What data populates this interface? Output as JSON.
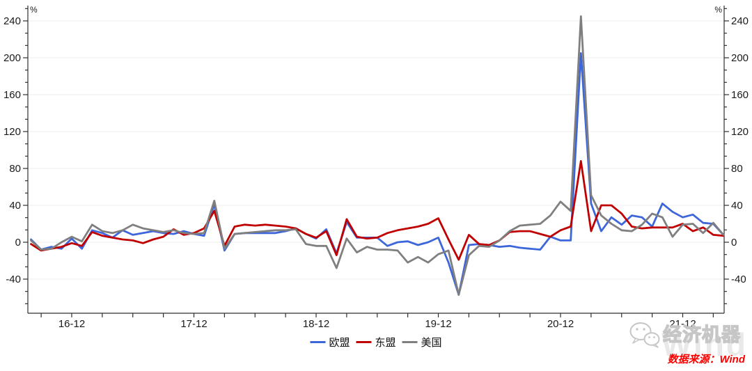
{
  "chart_data": {
    "type": "line",
    "title": "",
    "grid": "horizontal-faint",
    "legend_position": "bottom-center",
    "y_axis": {
      "unit_left": "%",
      "unit_right": "%",
      "ticks": [
        -40,
        0,
        40,
        80,
        120,
        160,
        200,
        240
      ],
      "ylim": [
        -77,
        257
      ]
    },
    "x": [
      "16-08",
      "16-09",
      "16-10",
      "16-11",
      "16-12",
      "17-01",
      "17-02",
      "17-03",
      "17-04",
      "17-05",
      "17-06",
      "17-07",
      "17-08",
      "17-09",
      "17-10",
      "17-11",
      "17-12",
      "18-01",
      "18-02",
      "18-03",
      "18-04",
      "18-05",
      "18-06",
      "18-07",
      "18-08",
      "18-09",
      "18-10",
      "18-11",
      "18-12",
      "19-01",
      "19-02",
      "19-03",
      "19-04",
      "19-05",
      "19-06",
      "19-07",
      "19-08",
      "19-09",
      "19-10",
      "19-11",
      "19-12",
      "20-01",
      "20-02",
      "20-03",
      "20-04",
      "20-05",
      "20-06",
      "20-07",
      "20-08",
      "20-09",
      "20-10",
      "20-11",
      "20-12",
      "21-01",
      "21-02",
      "21-03",
      "21-04",
      "21-05",
      "21-06",
      "21-07",
      "21-08",
      "21-09",
      "21-10",
      "21-11",
      "21-12",
      "22-01",
      "22-02",
      "22-03",
      "22-04"
    ],
    "x_labels": [
      "16-12",
      "17-12",
      "18-12",
      "19-12",
      "20-12",
      "21-12"
    ],
    "x_label_indices": [
      4,
      16,
      28,
      40,
      52,
      64
    ],
    "x_tick_every_months": 3,
    "series": [
      {
        "name": "欧盟",
        "color": "#3E66DB",
        "values": [
          3,
          -8,
          -5,
          -7,
          4,
          -7,
          13,
          10,
          5,
          13,
          8,
          10,
          12,
          10,
          9,
          12,
          9,
          7,
          41,
          -9,
          9,
          10,
          10,
          10,
          10,
          12,
          15,
          9,
          4,
          14,
          -12,
          22,
          5,
          5,
          5,
          -4,
          0,
          1,
          -3,
          0,
          5,
          -22,
          -57,
          -3,
          -2,
          -3,
          -5,
          -4,
          -6,
          -7,
          -8,
          6,
          2,
          2,
          205,
          42,
          12,
          27,
          19,
          29,
          27,
          17,
          42,
          33,
          27,
          30,
          21,
          20,
          8
        ]
      },
      {
        "name": "东盟",
        "color": "#C00000",
        "values": [
          -2,
          -9,
          -7,
          -5,
          -1,
          -4,
          11,
          7,
          5,
          3,
          2,
          -1,
          3,
          6,
          14,
          8,
          10,
          15,
          34,
          -4,
          17,
          19,
          18,
          19,
          18,
          17,
          15,
          9,
          5,
          12,
          -14,
          25,
          6,
          4,
          5,
          10,
          13,
          15,
          17,
          20,
          26,
          3,
          -19,
          8,
          -2,
          -3,
          2,
          11,
          12,
          12,
          9,
          6,
          13,
          17,
          88,
          12,
          40,
          40,
          31,
          17,
          15,
          16,
          16,
          16,
          20,
          12,
          16,
          8,
          7
        ]
      },
      {
        "name": "美国",
        "color": "#7F7F7F",
        "values": [
          2,
          -8,
          -7,
          0,
          6,
          1,
          19,
          12,
          10,
          13,
          19,
          15,
          13,
          11,
          13,
          10,
          9,
          10,
          45,
          -7,
          9,
          10,
          11,
          12,
          13,
          13,
          14,
          -2,
          -4,
          -4,
          -28,
          4,
          -11,
          -5,
          -8,
          -8,
          -9,
          -22,
          -16,
          -22,
          -13,
          -9,
          -57,
          -14,
          -4,
          -5,
          2,
          12,
          18,
          19,
          20,
          29,
          44,
          34,
          245,
          51,
          29,
          20,
          13,
          12,
          19,
          31,
          27,
          6,
          19,
          20,
          10,
          21,
          8
        ]
      }
    ]
  },
  "watermark": {
    "brand": "经济机器",
    "background_text": "Wind"
  },
  "source": {
    "text": "数据来源：Wind",
    "color": "#FE0000"
  }
}
